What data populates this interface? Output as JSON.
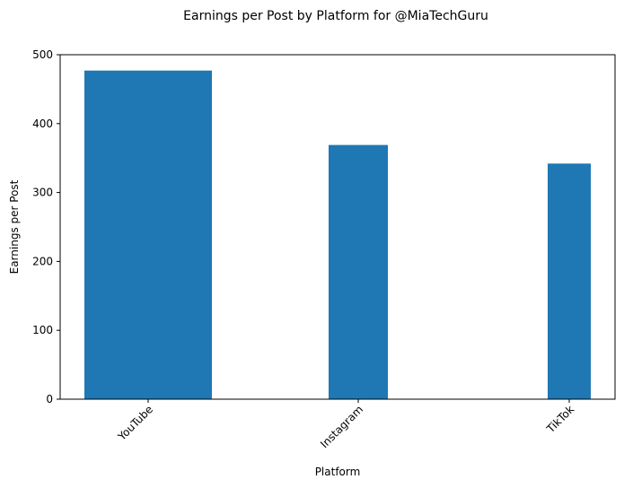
{
  "chart_data": {
    "type": "bar",
    "title": "Earnings per Post by Platform for @MiaTechGuru",
    "xlabel": "Platform",
    "ylabel": "Earnings per Post",
    "categories": [
      "YouTube",
      "Instagram",
      "TikTok"
    ],
    "values": [
      477,
      369,
      342
    ],
    "ylim": [
      0,
      500
    ],
    "yticks": [
      0,
      100,
      200,
      300,
      400,
      500
    ],
    "bar_color": "#1f77b4",
    "grid": false,
    "xtick_rotation_deg": 45
  }
}
